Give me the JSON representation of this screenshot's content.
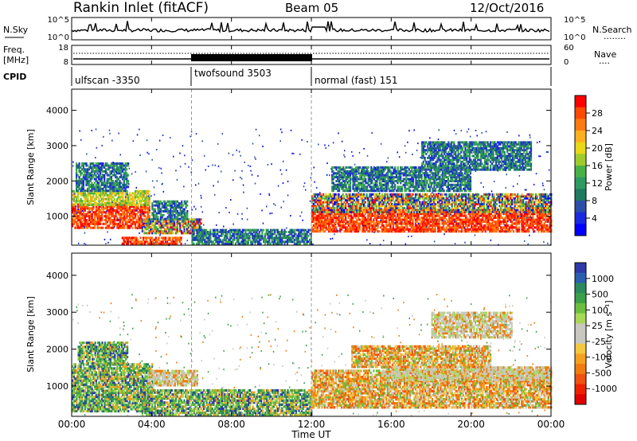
{
  "header": {
    "station": "Rankin Inlet (fitACF)",
    "beam": "Beam 05",
    "date": "12/Oct/2016"
  },
  "summary_panels": {
    "nsky": {
      "label": "N.Sky",
      "ticks": [
        "10^5",
        "10^0"
      ],
      "right_ticks": [
        "10^5",
        "10^0"
      ],
      "right_label": "N.Search",
      "right_legend": "........"
    },
    "freq": {
      "label": "Freq.",
      "unit": "[MHz]",
      "ticks": [
        "18",
        "8"
      ],
      "right_ticks": [
        "60",
        "0"
      ],
      "right_label": "Nave",
      "right_legend": "...."
    },
    "cpid": {
      "label": "CPID",
      "segments": [
        {
          "name": "ulfscan -3350",
          "start_hour": 0,
          "end_hour": 6
        },
        {
          "name": "twofsound 3503",
          "start_hour": 6,
          "end_hour": 12
        },
        {
          "name": "normal (fast) 151",
          "start_hour": 12,
          "end_hour": 24
        }
      ]
    }
  },
  "x_axis": {
    "label": "Time UT",
    "ticks": [
      "00:00",
      "04:00",
      "08:00",
      "12:00",
      "16:00",
      "20:00",
      "00:00"
    ],
    "range_hours": [
      0,
      24
    ]
  },
  "chart_data": [
    {
      "type": "heatmap",
      "name": "power",
      "ylabel": "Slant Range [km]",
      "ylim": [
        180,
        4600
      ],
      "yticks": [
        1000,
        2000,
        3000,
        4000
      ],
      "colorbar": {
        "label": "Power [dB]",
        "ticks": [
          "28",
          "24",
          "20",
          "16",
          "12",
          "8",
          "4"
        ],
        "colors": [
          "#ff0000",
          "#ff4a00",
          "#ff7a10",
          "#ffb020",
          "#e8d818",
          "#9fcc2c",
          "#48b248",
          "#2e9b60",
          "#1f7a5f",
          "#2a4fa8",
          "#1a2ae0",
          "#0000ff"
        ]
      },
      "blobs": [
        {
          "t0": 0.0,
          "t1": 3.9,
          "r0": 650,
          "r1": 1350,
          "level": "high"
        },
        {
          "t0": 0.0,
          "t1": 3.9,
          "r0": 1300,
          "r1": 1700,
          "level": "mid"
        },
        {
          "t0": 0.2,
          "t1": 2.8,
          "r0": 1700,
          "r1": 2500,
          "level": "low"
        },
        {
          "t0": 2.5,
          "t1": 5.5,
          "r0": 200,
          "r1": 420,
          "level": "high"
        },
        {
          "t0": 3.5,
          "t1": 6.5,
          "r0": 500,
          "r1": 900,
          "level": "mixed"
        },
        {
          "t0": 4.0,
          "t1": 5.8,
          "r0": 900,
          "r1": 1400,
          "level": "low"
        },
        {
          "t0": 6.0,
          "t1": 12.0,
          "r0": 200,
          "r1": 600,
          "level": "low"
        },
        {
          "t0": 12.0,
          "t1": 24.0,
          "r0": 550,
          "r1": 1200,
          "level": "high"
        },
        {
          "t0": 12.0,
          "t1": 24.0,
          "r0": 1100,
          "r1": 1600,
          "level": "mixed"
        },
        {
          "t0": 13.0,
          "t1": 20.0,
          "r0": 1700,
          "r1": 2400,
          "level": "low"
        },
        {
          "t0": 17.5,
          "t1": 23.0,
          "r0": 2300,
          "r1": 3100,
          "level": "low"
        }
      ]
    },
    {
      "type": "heatmap",
      "name": "velocity",
      "ylabel": "Slant Range [km]",
      "ylim": [
        180,
        4600
      ],
      "yticks": [
        1000,
        2000,
        3000,
        4000
      ],
      "colorbar": {
        "label": "Velocity [m s⁻¹]",
        "ticks": [
          "1000",
          "500",
          "100",
          "25",
          "-25",
          "-100",
          "-500",
          "-1000"
        ],
        "colors": [
          "#2e3aa8",
          "#2a5fb0",
          "#2a8a5c",
          "#3aa04a",
          "#6cc040",
          "#a8d858",
          "#c8c8c0",
          "#c8c8c0",
          "#f4c840",
          "#f4a020",
          "#f07c10",
          "#f05010",
          "#ef2000",
          "#e00000"
        ]
      },
      "blobs": [
        {
          "t0": 0.0,
          "t1": 4.0,
          "r0": 300,
          "r1": 1600,
          "level": "green"
        },
        {
          "t0": 0.3,
          "t1": 2.8,
          "r0": 1600,
          "r1": 2200,
          "level": "green"
        },
        {
          "t0": 3.8,
          "t1": 6.3,
          "r0": 1000,
          "r1": 1400,
          "level": "gray"
        },
        {
          "t0": 3.5,
          "t1": 12.0,
          "r0": 200,
          "r1": 900,
          "level": "green"
        },
        {
          "t0": 12.0,
          "t1": 24.0,
          "r0": 400,
          "r1": 1400,
          "level": "orange"
        },
        {
          "t0": 15.5,
          "t1": 24.0,
          "r0": 1150,
          "r1": 1500,
          "level": "gray"
        },
        {
          "t0": 14.0,
          "t1": 21.0,
          "r0": 1500,
          "r1": 2100,
          "level": "orange"
        },
        {
          "t0": 18.0,
          "t1": 22.0,
          "r0": 2300,
          "r1": 3000,
          "level": "gray"
        }
      ]
    }
  ]
}
